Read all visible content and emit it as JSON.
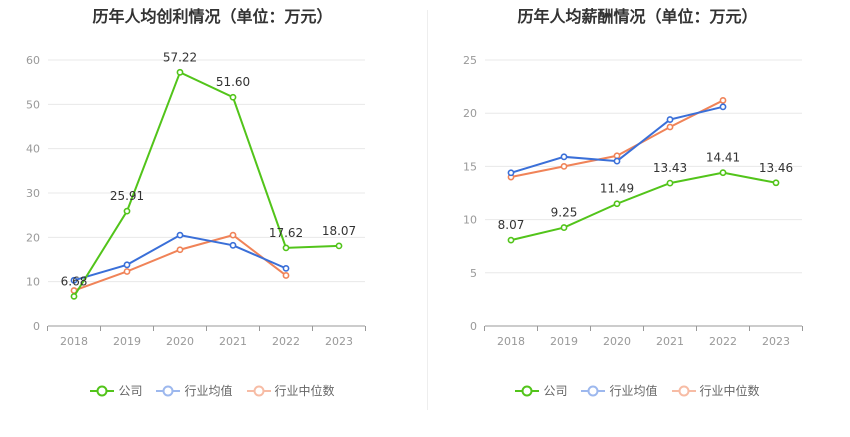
{
  "colors": {
    "company": "#52c41a",
    "industry_avg": "#3a6fd8",
    "industry_median": "#f08358"
  },
  "legend": {
    "company": "公司",
    "industry_avg": "行业均值",
    "industry_median": "行业中位数"
  },
  "chart_data": [
    {
      "type": "line",
      "title": "历年人均创利情况（单位：万元）",
      "categories": [
        "2018",
        "2019",
        "2020",
        "2021",
        "2022",
        "2023"
      ],
      "ylim": [
        0,
        60
      ],
      "yticks": [
        0,
        10,
        20,
        30,
        40,
        50,
        60
      ],
      "grid": true,
      "legend_position": "bottom",
      "series": [
        {
          "name": "公司",
          "values": [
            6.68,
            25.91,
            57.22,
            51.6,
            17.62,
            18.07
          ],
          "labels": [
            "6.68",
            "25.91",
            "57.22",
            "51.60",
            "17.62",
            "18.07"
          ]
        },
        {
          "name": "行业均值",
          "values": [
            10.3,
            13.8,
            20.5,
            18.2,
            13.0,
            null
          ]
        },
        {
          "name": "行业中位数",
          "values": [
            8.0,
            12.3,
            17.2,
            20.5,
            11.4,
            null
          ]
        }
      ]
    },
    {
      "type": "line",
      "title": "历年人均薪酬情况（单位：万元）",
      "categories": [
        "2018",
        "2019",
        "2020",
        "2021",
        "2022",
        "2023"
      ],
      "ylim": [
        0,
        25
      ],
      "yticks": [
        0,
        5,
        10,
        15,
        20,
        25
      ],
      "grid": true,
      "legend_position": "bottom",
      "series": [
        {
          "name": "公司",
          "values": [
            8.07,
            9.25,
            11.49,
            13.43,
            14.41,
            13.46
          ],
          "labels": [
            "8.07",
            "9.25",
            "11.49",
            "13.43",
            "14.41",
            "13.46"
          ]
        },
        {
          "name": "行业均值",
          "values": [
            14.4,
            15.9,
            15.5,
            19.4,
            20.6,
            null
          ]
        },
        {
          "name": "行业中位数",
          "values": [
            14.0,
            15.0,
            16.0,
            18.7,
            21.2,
            null
          ]
        }
      ]
    }
  ]
}
